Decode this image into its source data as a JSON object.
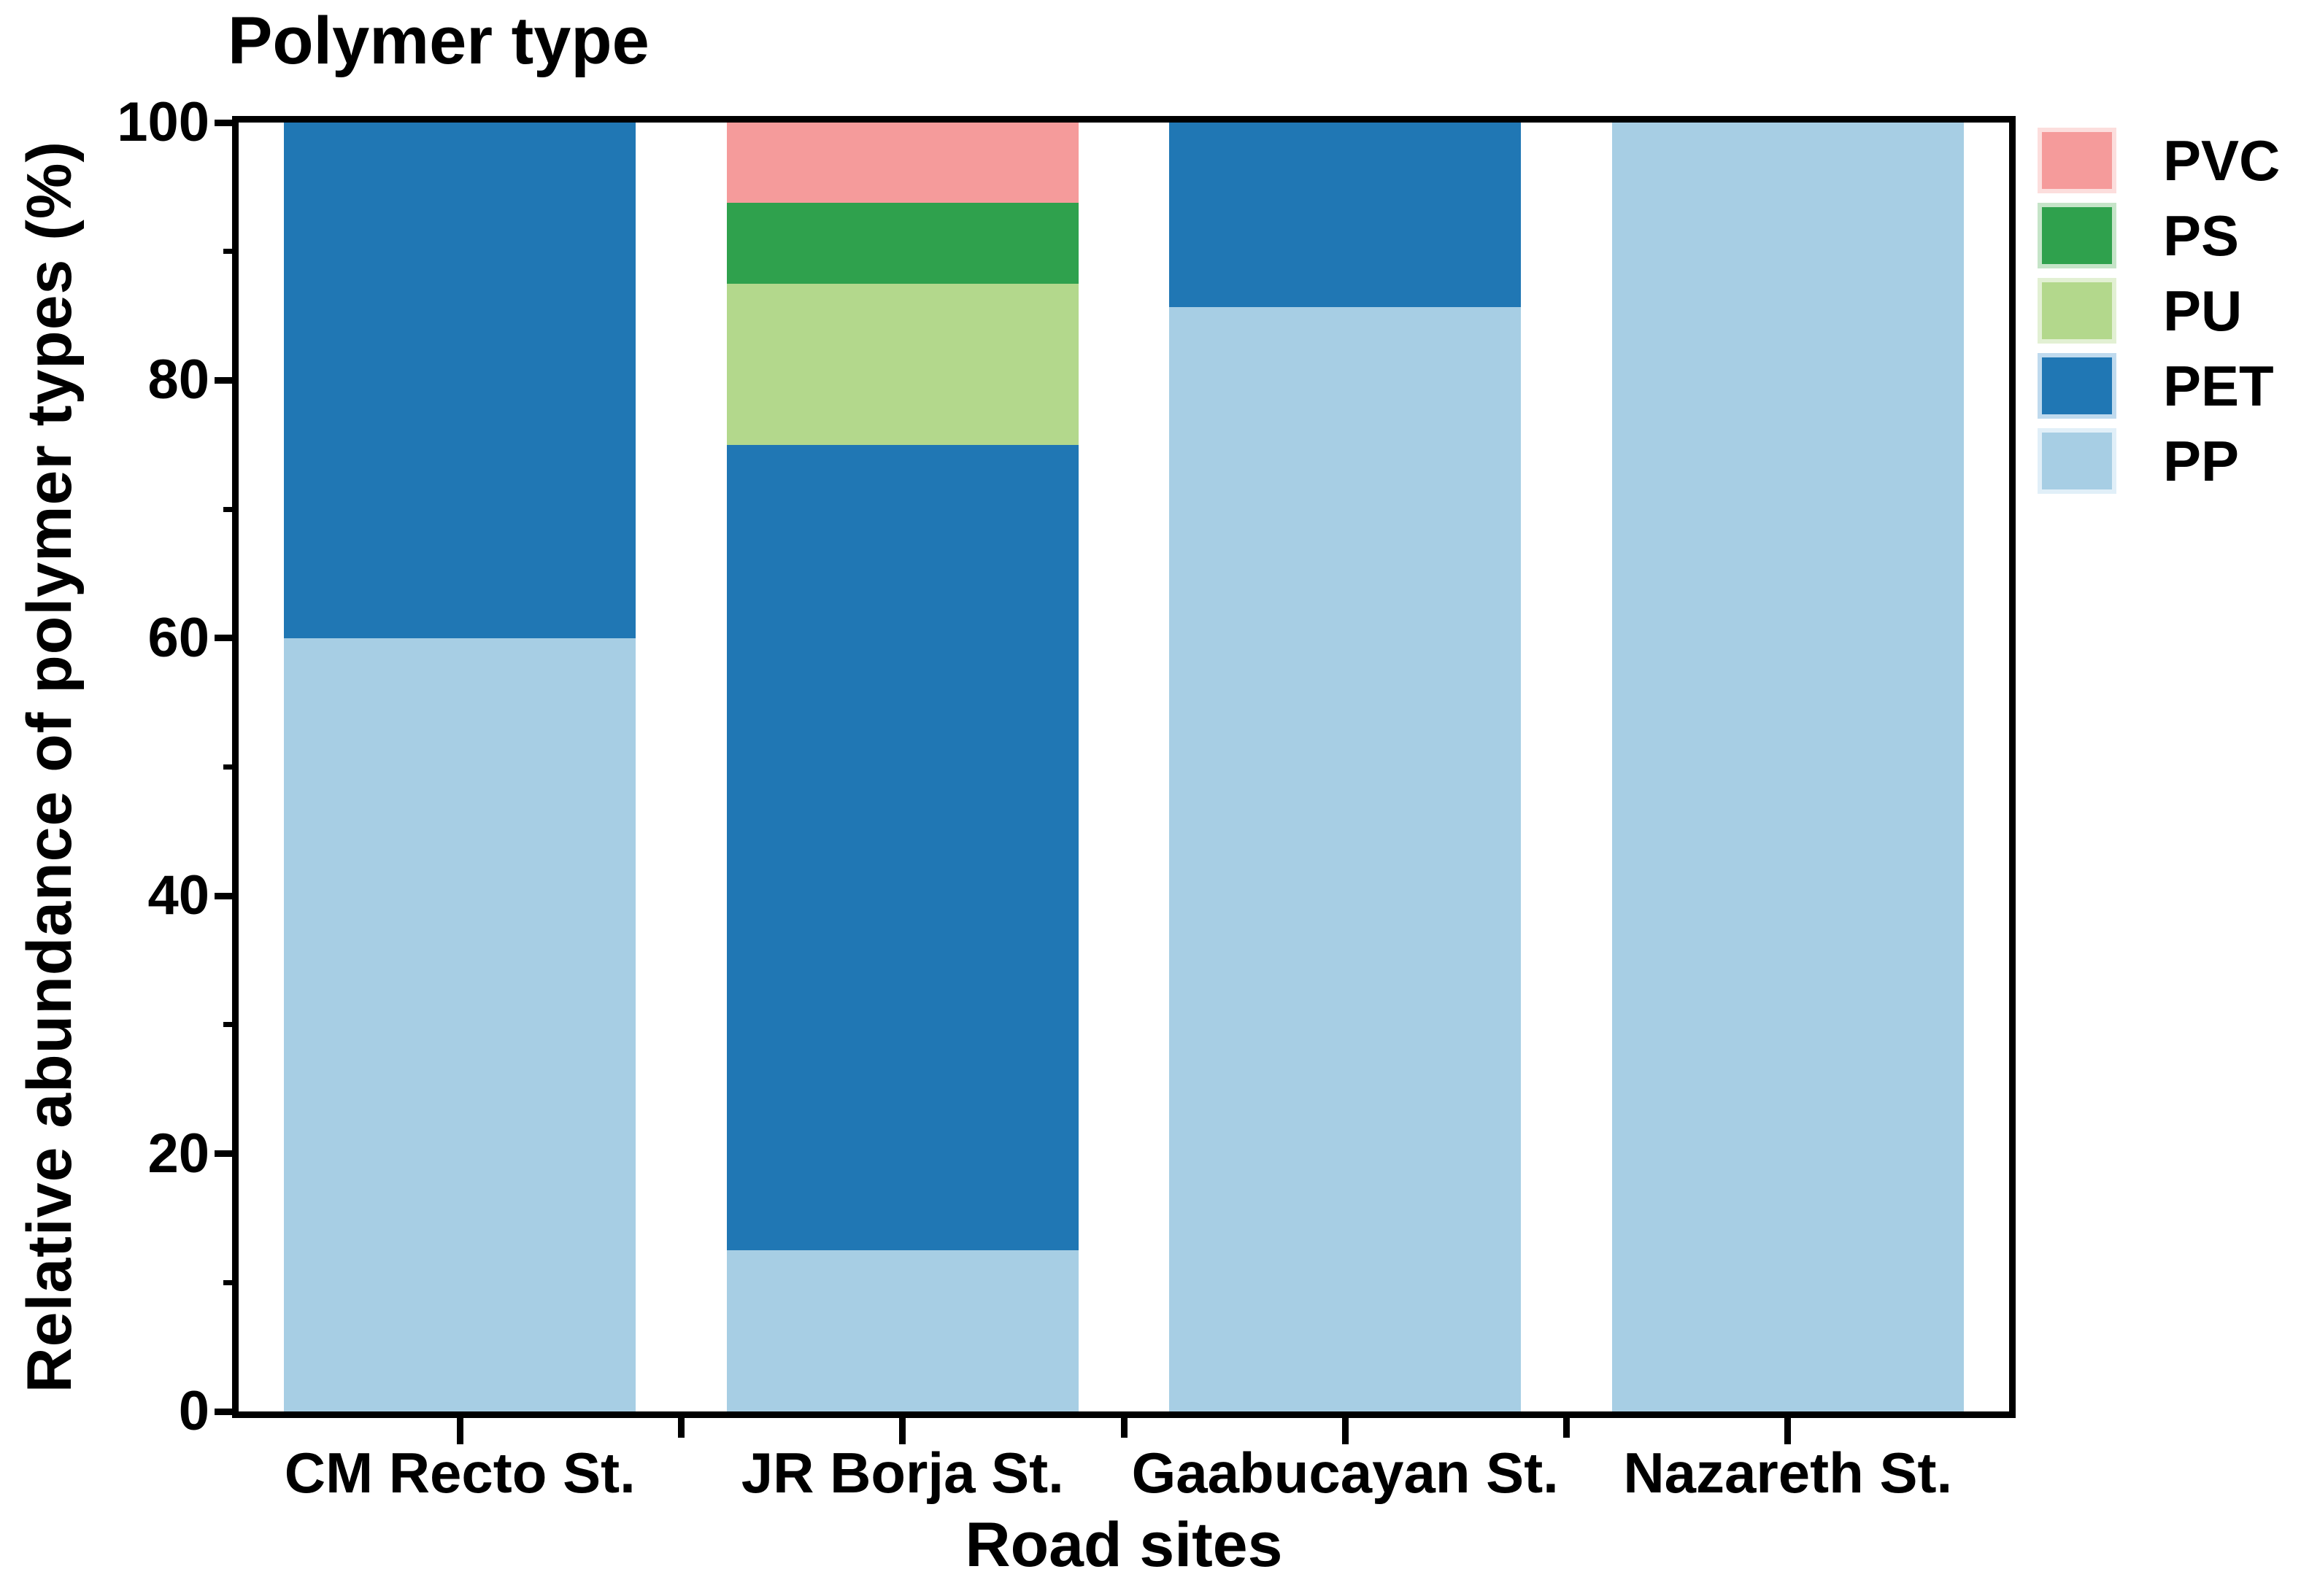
{
  "title": "Polymer type",
  "chart_data": {
    "type": "bar",
    "stacked": true,
    "title": "Polymer type",
    "xlabel": "Road sites",
    "ylabel": "Relative abundance of polymer types (%)",
    "categories": [
      "CM Recto St.",
      "JR Borja St.",
      "Gaabucayan St.",
      "Nazareth St."
    ],
    "series": [
      {
        "name": "PP",
        "color": "#A7CEE4",
        "edge": "#E1EFF8",
        "values": [
          60,
          12.5,
          85.7,
          100
        ]
      },
      {
        "name": "PET",
        "color": "#2077B4",
        "edge": "#BFDAEE",
        "values": [
          40,
          62.5,
          14.3,
          0
        ]
      },
      {
        "name": "PU",
        "color": "#B3D88C",
        "edge": "#E2F0D3",
        "values": [
          0,
          12.5,
          0,
          0
        ]
      },
      {
        "name": "PS",
        "color": "#2FA14D",
        "edge": "#C5E4C8",
        "values": [
          0,
          6.25,
          0,
          0
        ]
      },
      {
        "name": "PVC",
        "color": "#F59B9B",
        "edge": "#FCDEDD",
        "values": [
          0,
          6.25,
          0,
          0
        ]
      }
    ],
    "legend": [
      "PVC",
      "PS",
      "PU",
      "PET",
      "PP"
    ],
    "legend_position": "upper right outside",
    "y_ticks": [
      0,
      20,
      40,
      60,
      80,
      100
    ],
    "y_minor_ticks": [
      10,
      30,
      50,
      70,
      90
    ],
    "ylim": [
      0,
      100
    ],
    "grid": false
  }
}
